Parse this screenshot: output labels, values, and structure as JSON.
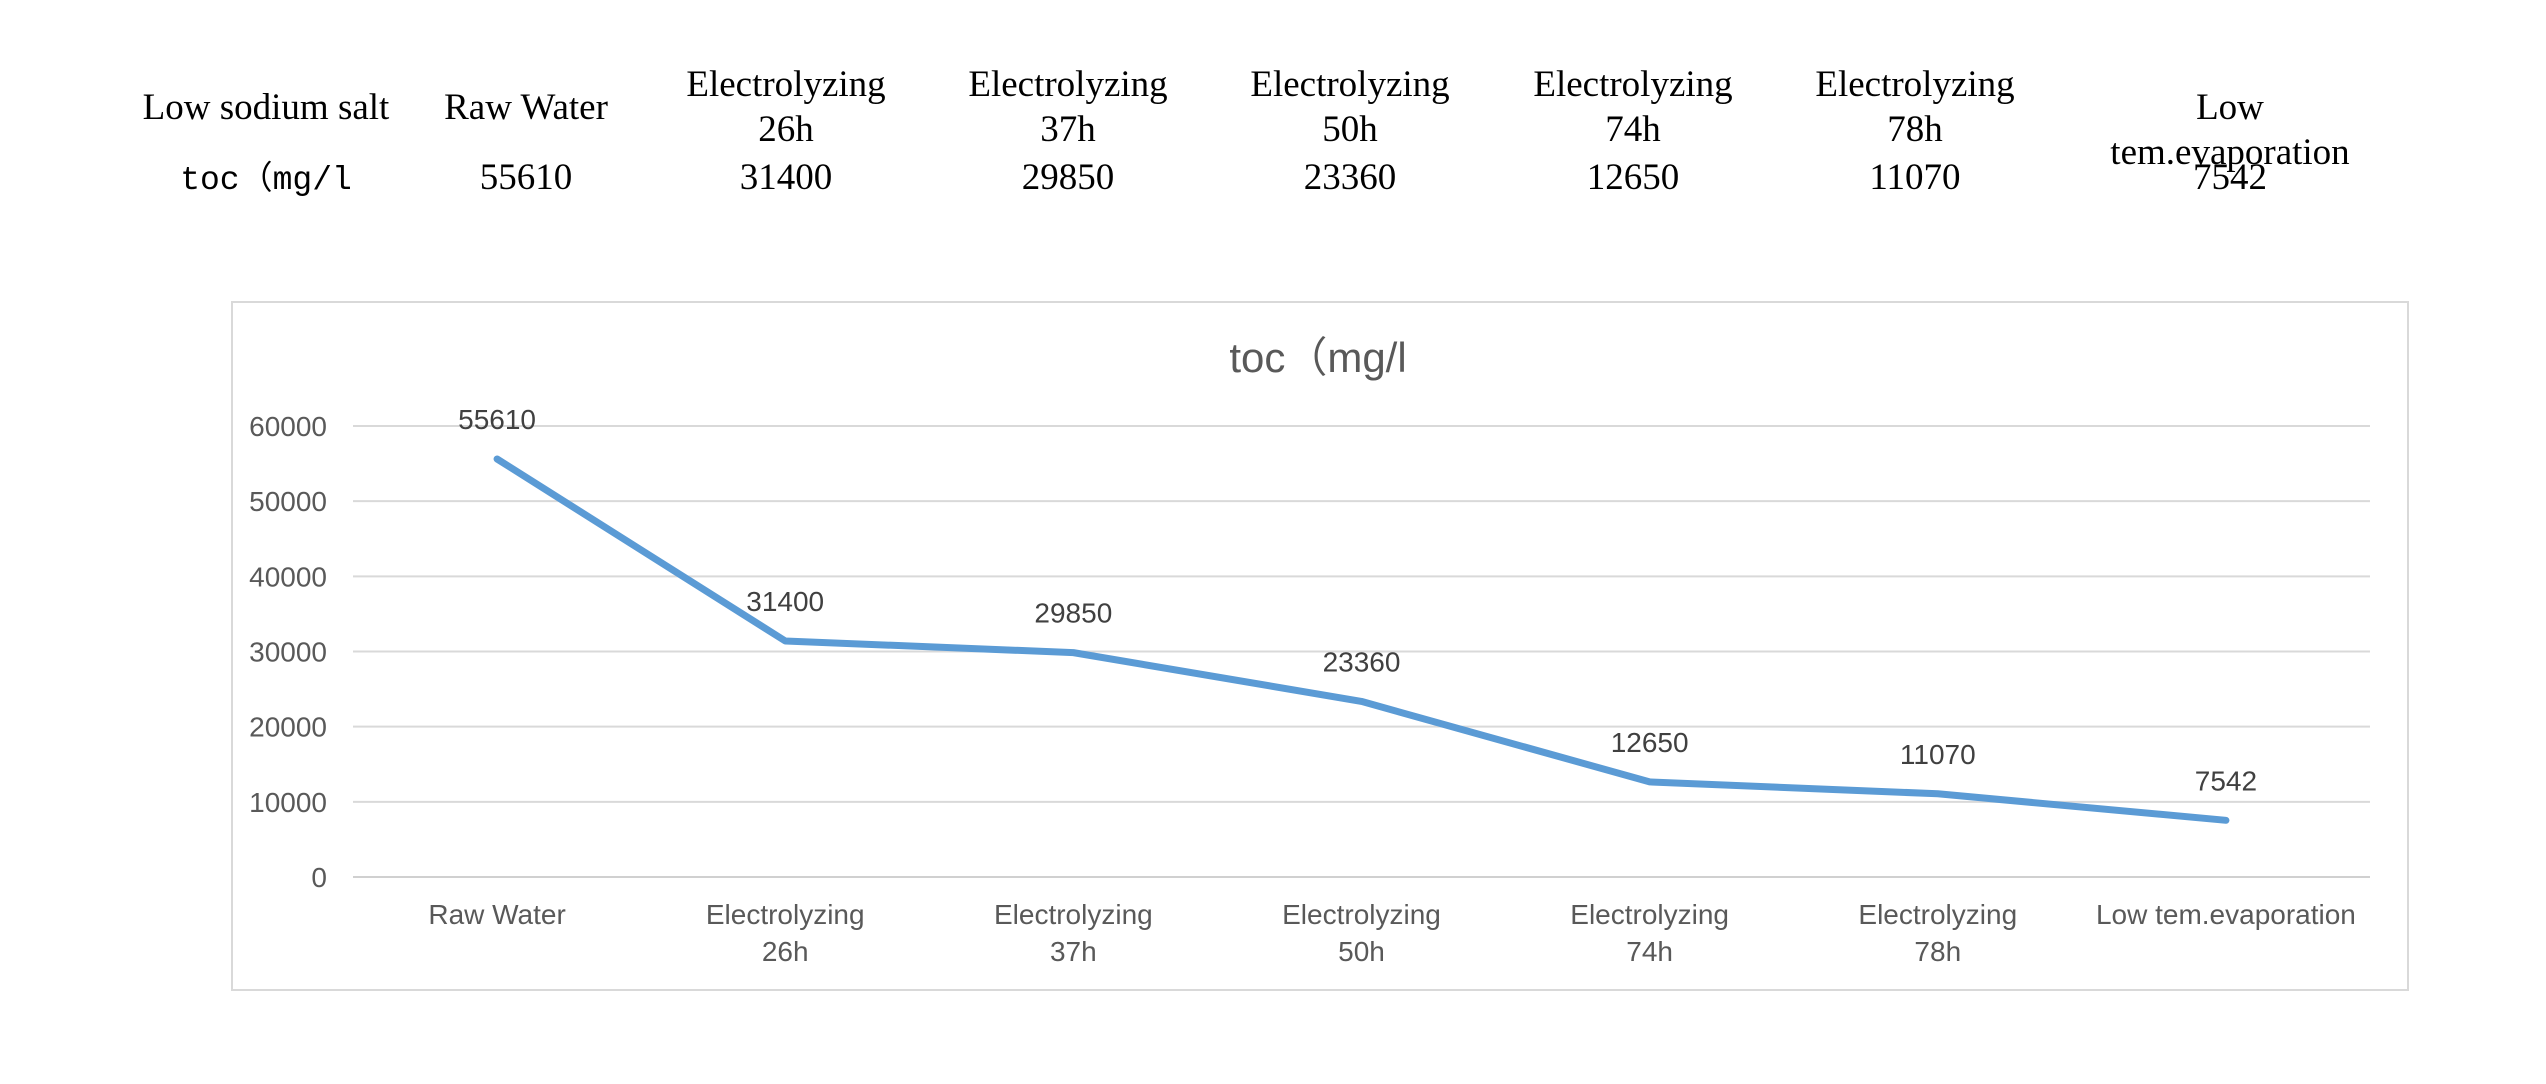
{
  "table": {
    "header_label": "Low sodium salt",
    "row_label": "toc（mg/l",
    "columns": [
      {
        "header": "Raw Water",
        "value": "55610"
      },
      {
        "header": "Electrolyzing\n26h",
        "value": "31400"
      },
      {
        "header": "Electrolyzing\n37h",
        "value": "29850"
      },
      {
        "header": "Electrolyzing\n50h",
        "value": "23360"
      },
      {
        "header": "Electrolyzing\n74h",
        "value": "12650"
      },
      {
        "header": "Electrolyzing\n78h",
        "value": "11070"
      },
      {
        "header": "Low tem.evaporation",
        "value": "7542"
      }
    ]
  },
  "chart_data": {
    "type": "line",
    "title": "toc（mg/l",
    "categories": [
      "Raw Water",
      "Electrolyzing\n26h",
      "Electrolyzing\n37h",
      "Electrolyzing\n50h",
      "Electrolyzing\n74h",
      "Electrolyzing\n78h",
      "Low tem.evaporation"
    ],
    "values": [
      55610,
      31400,
      29850,
      23360,
      12650,
      11070,
      7542
    ],
    "data_labels": [
      "55610",
      "31400",
      "29850",
      "23360",
      "12650",
      "11070",
      "7542"
    ],
    "yticks": [
      0,
      10000,
      20000,
      30000,
      40000,
      50000,
      60000
    ],
    "ylim": [
      0,
      60000
    ],
    "grid": true,
    "legend": "none",
    "line_color": "#5b9bd5"
  }
}
